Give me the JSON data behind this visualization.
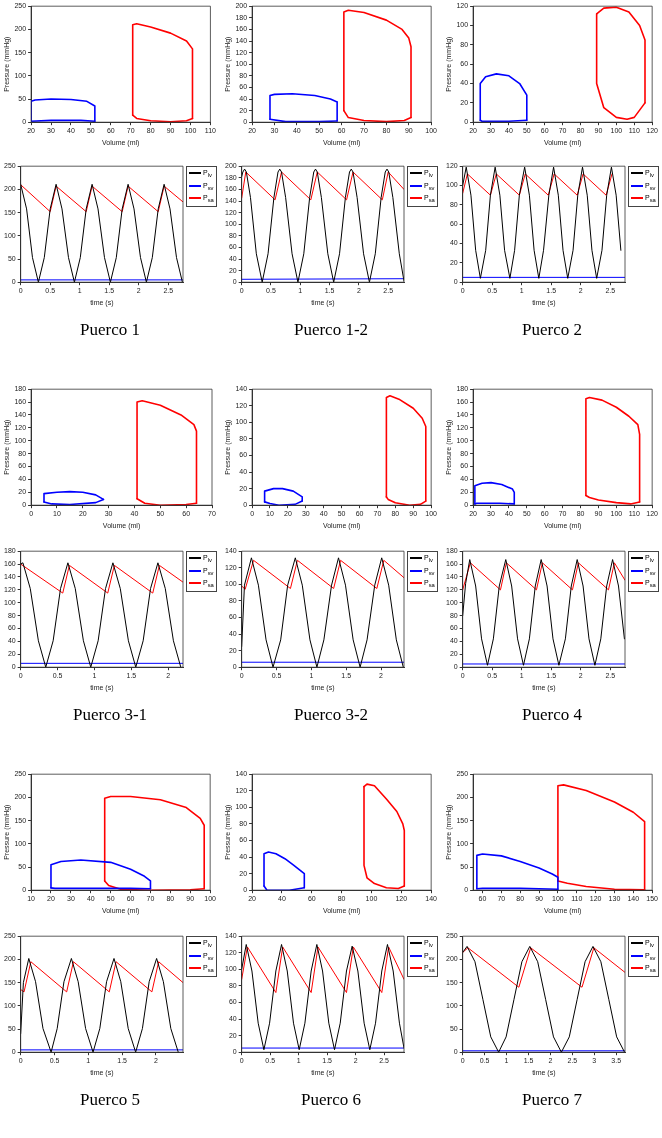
{
  "chart_data": [
    {
      "type": "line",
      "xlabel": "Volume (ml)",
      "ylabel": "Pressure (mmHg)",
      "xlim": [
        20,
        110
      ],
      "xticks": [
        20,
        30,
        40,
        50,
        60,
        70,
        80,
        90,
        100,
        110
      ],
      "ylim": [
        0,
        250
      ],
      "yticks": [
        0,
        50,
        100,
        150,
        200,
        250
      ],
      "series": [
        {
          "color": "#0000ff",
          "x": [
            20,
            20,
            22,
            30,
            40,
            48,
            52,
            52
          ],
          "values": [
            2,
            45,
            48,
            50,
            49,
            45,
            35,
            2
          ]
        },
        {
          "color": "#0000ff",
          "x": [
            20,
            30,
            45,
            52
          ],
          "values": [
            2,
            4,
            4,
            2
          ]
        },
        {
          "color": "#ff0000",
          "x": [
            71,
            71,
            73,
            80,
            90,
            98,
            101,
            101
          ],
          "values": [
            15,
            210,
            212,
            205,
            192,
            175,
            158,
            8
          ]
        },
        {
          "color": "#ff0000",
          "x": [
            71,
            73,
            80,
            90,
            98,
            101
          ],
          "values": [
            15,
            8,
            3,
            1,
            3,
            8
          ]
        }
      ]
    },
    {
      "type": "line",
      "xlabel": "Volume (ml)",
      "ylabel": "Pressure (mmHg)",
      "xlim": [
        20,
        100
      ],
      "xticks": [
        20,
        30,
        40,
        50,
        60,
        70,
        80,
        90,
        100
      ],
      "ylim": [
        0,
        200
      ],
      "yticks": [
        0,
        20,
        40,
        60,
        80,
        100,
        120,
        140,
        160,
        180,
        200
      ],
      "series": [
        {
          "color": "#0000ff",
          "x": [
            28,
            28,
            30,
            38,
            48,
            55,
            58,
            58
          ],
          "values": [
            5,
            46,
            48,
            49,
            46,
            40,
            35,
            2
          ]
        },
        {
          "color": "#0000ff",
          "x": [
            28,
            35,
            50,
            58
          ],
          "values": [
            5,
            1,
            1,
            2
          ]
        },
        {
          "color": "#ff0000",
          "x": [
            61,
            61,
            63,
            70,
            80,
            87,
            90,
            91,
            91
          ],
          "values": [
            20,
            190,
            193,
            189,
            176,
            160,
            145,
            130,
            8
          ]
        },
        {
          "color": "#ff0000",
          "x": [
            61,
            63,
            70,
            80,
            88,
            91
          ],
          "values": [
            20,
            8,
            3,
            1,
            3,
            8
          ]
        }
      ]
    },
    {
      "type": "line",
      "xlabel": "Volume (ml)",
      "ylabel": "Pressure (mmHg)",
      "xlim": [
        20,
        120
      ],
      "xticks": [
        20,
        30,
        40,
        50,
        60,
        70,
        80,
        90,
        100,
        110,
        120
      ],
      "ylim": [
        0,
        120
      ],
      "yticks": [
        0,
        20,
        40,
        60,
        80,
        100,
        120
      ],
      "series": [
        {
          "color": "#0000ff",
          "x": [
            24,
            24,
            27,
            33,
            40,
            46,
            50,
            50
          ],
          "values": [
            2,
            40,
            47,
            50,
            48,
            40,
            28,
            2
          ]
        },
        {
          "color": "#0000ff",
          "x": [
            24,
            25,
            40,
            50
          ],
          "values": [
            2,
            1,
            1,
            2
          ]
        },
        {
          "color": "#ff0000",
          "x": [
            89,
            93,
            100,
            107,
            113,
            116,
            116
          ],
          "values": [
            112,
            118,
            119,
            114,
            100,
            85,
            20
          ]
        },
        {
          "color": "#ff0000",
          "x": [
            89,
            89,
            93,
            100,
            106,
            110,
            116
          ],
          "values": [
            112,
            40,
            15,
            5,
            3,
            5,
            20
          ]
        }
      ]
    },
    {
      "type": "line",
      "xlabel": "time (s)",
      "xlim": [
        0,
        2.75
      ],
      "xticks": [
        0,
        0.5,
        1,
        1.5,
        2,
        2.5
      ],
      "ylim": [
        0,
        250
      ],
      "yticks": [
        0,
        50,
        100,
        150,
        200,
        250
      ],
      "legend": "top right",
      "annotations": [
        "Puerco 1"
      ],
      "series": [
        {
          "name": "P$_{lv}$",
          "color": "#000000",
          "x": [
            0,
            0.1,
            0.2,
            0.3,
            0.4,
            0.5,
            0.6,
            0.7,
            0.81,
            0.91,
            1.01,
            1.11,
            1.21,
            1.31,
            1.42,
            1.52,
            1.62,
            1.72,
            1.82,
            1.92,
            2.03,
            2.13,
            2.23,
            2.33,
            2.43,
            2.53,
            2.64,
            2.74
          ],
          "values": [
            211,
            158,
            53,
            0,
            53,
            158,
            211,
            158,
            53,
            0,
            53,
            158,
            211,
            158,
            53,
            0,
            53,
            158,
            211,
            158,
            53,
            0,
            53,
            158,
            211,
            158,
            53,
            0
          ]
        },
        {
          "name": "P$_{sv}$",
          "color": "#0000ff",
          "x": [
            0,
            2.75
          ],
          "values": [
            5,
            5
          ]
        },
        {
          "name": "P$_{sa}$",
          "color": "#ff0000",
          "x": [
            0,
            0.5,
            0.6,
            1.11,
            1.21,
            1.72,
            1.82,
            2.33,
            2.43,
            2.75
          ],
          "values": [
            210,
            152,
            207,
            152,
            207,
            152,
            207,
            152,
            207,
            173
          ]
        }
      ]
    },
    {
      "type": "line",
      "xlabel": "time (s)",
      "xlim": [
        0,
        2.77
      ],
      "xticks": [
        0,
        0.5,
        1,
        1.5,
        2,
        2.5
      ],
      "ylim": [
        0,
        200
      ],
      "yticks": [
        0,
        20,
        40,
        60,
        80,
        100,
        120,
        140,
        160,
        180,
        200
      ],
      "legend": "top right",
      "annotations": [
        "Puerco 1-2"
      ],
      "series": [
        {
          "name": "P$_{lv}$",
          "color": "#000000",
          "x": [
            0,
            0.02,
            0.05,
            0.08,
            0.15,
            0.25,
            0.35,
            0.45,
            0.55,
            0.62,
            0.65,
            0.68,
            0.75,
            0.86,
            0.96,
            1.06,
            1.16,
            1.23,
            1.26,
            1.29,
            1.36,
            1.47,
            1.57,
            1.67,
            1.77,
            1.84,
            1.87,
            1.9,
            1.97,
            2.08,
            2.18,
            2.28,
            2.38,
            2.45,
            2.48,
            2.51,
            2.58,
            2.69,
            2.77
          ],
          "values": [
            182,
            190,
            195,
            190,
            146,
            49,
            0,
            49,
            146,
            190,
            195,
            190,
            146,
            49,
            0,
            49,
            146,
            190,
            195,
            190,
            146,
            49,
            0,
            49,
            146,
            190,
            195,
            190,
            146,
            49,
            0,
            49,
            146,
            190,
            195,
            190,
            146,
            49,
            2
          ]
        },
        {
          "name": "P$_{sv}$",
          "color": "#0000ff",
          "x": [
            0,
            2.77
          ],
          "values": [
            5,
            6
          ]
        },
        {
          "name": "P$_{sa}$",
          "color": "#ff0000",
          "x": [
            0,
            0.07,
            0.57,
            0.68,
            1.18,
            1.29,
            1.79,
            1.9,
            2.4,
            2.5,
            2.77
          ],
          "values": [
            145,
            190,
            142,
            190,
            142,
            190,
            142,
            190,
            142,
            190,
            160
          ]
        }
      ]
    },
    {
      "type": "line",
      "xlabel": "time (s)",
      "xlim": [
        0,
        2.75
      ],
      "xticks": [
        0,
        0.5,
        1,
        1.5,
        2,
        2.5
      ],
      "ylim": [
        0,
        120
      ],
      "yticks": [
        0,
        20,
        40,
        60,
        80,
        100,
        120
      ],
      "legend": "top right",
      "annotations": [
        "Puerco 2"
      ],
      "series": [
        {
          "name": "P$_{lv}$",
          "color": "#000000",
          "x": [
            0,
            0.06,
            0.14,
            0.22,
            0.3,
            0.39,
            0.47,
            0.55,
            0.63,
            0.71,
            0.8,
            0.88,
            0.96,
            1.05,
            1.13,
            1.21,
            1.29,
            1.37,
            1.46,
            1.54,
            1.62,
            1.7,
            1.78,
            1.87,
            1.95,
            2.03,
            2.11,
            2.19,
            2.27,
            2.36,
            2.44,
            2.52,
            2.6,
            2.68
          ],
          "values": [
            100,
            119,
            90,
            33,
            4,
            33,
            90,
            119,
            90,
            33,
            4,
            33,
            90,
            119,
            90,
            33,
            4,
            33,
            90,
            119,
            90,
            33,
            4,
            33,
            90,
            119,
            90,
            33,
            4,
            33,
            90,
            119,
            90,
            33
          ]
        },
        {
          "name": "P$_{sv}$",
          "color": "#0000ff",
          "x": [
            0,
            2.75
          ],
          "values": [
            5,
            5
          ]
        },
        {
          "name": "P$_{sa}$",
          "color": "#ff0000",
          "x": [
            0,
            0.08,
            0.47,
            0.57,
            0.96,
            1.06,
            1.45,
            1.55,
            1.94,
            2.04,
            2.43,
            2.53
          ],
          "values": [
            92,
            112,
            90,
            112,
            90,
            112,
            90,
            112,
            90,
            112,
            90,
            112
          ]
        }
      ]
    },
    {
      "type": "line",
      "xlabel": "Volume (ml)",
      "ylabel": "Pressure (mmHg)",
      "xlim": [
        0,
        70
      ],
      "xticks": [
        0,
        10,
        20,
        30,
        40,
        50,
        60,
        70
      ],
      "ylim": [
        0,
        180
      ],
      "yticks": [
        0,
        20,
        40,
        60,
        80,
        100,
        120,
        140,
        160,
        180
      ],
      "series": [
        {
          "color": "#0000ff",
          "x": [
            5,
            5,
            10,
            15,
            20,
            25,
            28
          ],
          "values": [
            5,
            18,
            20,
            21,
            20,
            16,
            9
          ]
        },
        {
          "color": "#0000ff",
          "x": [
            5,
            8,
            15,
            25,
            28
          ],
          "values": [
            5,
            2,
            1,
            4,
            9
          ]
        },
        {
          "color": "#ff0000",
          "x": [
            41,
            41,
            43,
            50,
            58,
            63,
            64,
            64
          ],
          "values": [
            10,
            160,
            162,
            155,
            140,
            125,
            115,
            3
          ]
        },
        {
          "color": "#ff0000",
          "x": [
            41,
            44,
            50,
            60,
            64
          ],
          "values": [
            10,
            3,
            0,
            1,
            3
          ]
        }
      ]
    },
    {
      "type": "line",
      "xlabel": "Volume (ml)",
      "ylabel": "Pressure (mmHg)",
      "xlim": [
        0,
        100
      ],
      "xticks": [
        0,
        10,
        20,
        30,
        40,
        50,
        60,
        70,
        80,
        90,
        100
      ],
      "ylim": [
        0,
        140
      ],
      "yticks": [
        0,
        20,
        40,
        60,
        80,
        100,
        120,
        140
      ],
      "series": [
        {
          "color": "#0000ff",
          "x": [
            7,
            7,
            12,
            17,
            23,
            28,
            28
          ],
          "values": [
            4,
            17,
            20,
            20,
            17,
            10,
            5
          ]
        },
        {
          "color": "#0000ff",
          "x": [
            7,
            10,
            15,
            24,
            28
          ],
          "values": [
            4,
            2,
            0,
            1,
            5
          ]
        },
        {
          "color": "#ff0000",
          "x": [
            75,
            75,
            77,
            82,
            90,
            95,
            97,
            97
          ],
          "values": [
            10,
            130,
            132,
            128,
            117,
            105,
            95,
            5
          ]
        },
        {
          "color": "#ff0000",
          "x": [
            75,
            76,
            80,
            88,
            94,
            97
          ],
          "values": [
            10,
            7,
            3,
            0,
            1,
            5
          ]
        }
      ]
    },
    {
      "type": "line",
      "xlabel": "Volume (ml)",
      "ylabel": "Pressure (mmHg)",
      "xlim": [
        20,
        120
      ],
      "xticks": [
        20,
        30,
        40,
        50,
        60,
        70,
        80,
        90,
        100,
        110,
        120
      ],
      "ylim": [
        0,
        180
      ],
      "yticks": [
        0,
        20,
        40,
        60,
        80,
        100,
        120,
        140,
        160,
        180
      ],
      "series": [
        {
          "color": "#0000ff",
          "x": [
            21,
            21,
            25,
            30,
            36,
            42,
            43,
            43
          ],
          "values": [
            2,
            30,
            34,
            35,
            32,
            25,
            20,
            2
          ]
        },
        {
          "color": "#0000ff",
          "x": [
            21,
            22,
            35,
            43
          ],
          "values": [
            2,
            3,
            3,
            2
          ]
        },
        {
          "color": "#ff0000",
          "x": [
            83,
            83,
            85,
            92,
            100,
            107,
            112,
            113,
            113
          ],
          "values": [
            15,
            165,
            167,
            163,
            152,
            138,
            125,
            110,
            5
          ]
        },
        {
          "color": "#ff0000",
          "x": [
            83,
            85,
            90,
            100,
            108,
            113
          ],
          "values": [
            15,
            12,
            8,
            4,
            2,
            5
          ]
        }
      ]
    },
    {
      "type": "line",
      "xlabel": "time (s)",
      "xlim": [
        0,
        2.2
      ],
      "xticks": [
        0,
        0.5,
        1,
        1.5,
        2
      ],
      "ylim": [
        0,
        180
      ],
      "yticks": [
        0,
        20,
        40,
        60,
        80,
        100,
        120,
        140,
        160,
        180
      ],
      "legend": "top right",
      "annotations": [
        "Puerco 3-1"
      ],
      "series": [
        {
          "name": "P$_{lv}$",
          "color": "#000000",
          "x": [
            0,
            0.03,
            0.13,
            0.24,
            0.34,
            0.44,
            0.54,
            0.64,
            0.74,
            0.85,
            0.95,
            1.05,
            1.15,
            1.25,
            1.35,
            1.46,
            1.56,
            1.66,
            1.76,
            1.86,
            1.96,
            2.07,
            2.17
          ],
          "values": [
            160,
            162,
            122,
            41,
            0,
            41,
            122,
            162,
            122,
            41,
            0,
            41,
            122,
            162,
            122,
            41,
            0,
            41,
            122,
            162,
            122,
            41,
            0
          ]
        },
        {
          "name": "P$_{sv}$",
          "color": "#0000ff",
          "x": [
            0,
            2.2
          ],
          "values": [
            6,
            6
          ]
        },
        {
          "name": "P$_{sa}$",
          "color": "#ff0000",
          "x": [
            0,
            0.57,
            0.66,
            1.18,
            1.27,
            1.79,
            1.88,
            2.2
          ],
          "values": [
            160,
            115,
            158,
            115,
            158,
            115,
            158,
            132
          ]
        }
      ]
    },
    {
      "type": "line",
      "xlabel": "time (s)",
      "xlim": [
        0,
        2.33
      ],
      "xticks": [
        0,
        0.5,
        1,
        1.5,
        2
      ],
      "ylim": [
        0,
        140
      ],
      "yticks": [
        0,
        20,
        40,
        60,
        80,
        100,
        120,
        140
      ],
      "legend": "top right",
      "annotations": [
        "Puerco 3-2"
      ],
      "series": [
        {
          "name": "P$_{lv}$",
          "color": "#000000",
          "x": [
            0,
            0.04,
            0.14,
            0.24,
            0.35,
            0.45,
            0.56,
            0.66,
            0.77,
            0.87,
            0.98,
            1.08,
            1.18,
            1.29,
            1.39,
            1.49,
            1.6,
            1.7,
            1.8,
            1.91,
            2.01,
            2.11,
            2.22,
            2.32
          ],
          "values": [
            25,
            99,
            132,
            99,
            33,
            0,
            33,
            99,
            132,
            99,
            33,
            0,
            33,
            99,
            132,
            99,
            33,
            0,
            33,
            99,
            132,
            99,
            33,
            0
          ]
        },
        {
          "name": "P$_{sv}$",
          "color": "#0000ff",
          "x": [
            0,
            2.33
          ],
          "values": [
            6,
            6
          ]
        },
        {
          "name": "P$_{sa}$",
          "color": "#ff0000",
          "x": [
            0,
            0.05,
            0.17,
            0.7,
            0.8,
            1.32,
            1.42,
            1.94,
            2.04,
            2.33
          ],
          "values": [
            98,
            94,
            129,
            95,
            129,
            95,
            129,
            95,
            129,
            108
          ]
        }
      ]
    },
    {
      "type": "line",
      "xlabel": "time (s)",
      "xlim": [
        0,
        2.75
      ],
      "xticks": [
        0,
        0.5,
        1,
        1.5,
        2,
        2.5
      ],
      "ylim": [
        0,
        180
      ],
      "yticks": [
        0,
        20,
        40,
        60,
        80,
        100,
        120,
        140,
        160,
        180
      ],
      "legend": "top right",
      "annotations": [
        "Puerco 4"
      ],
      "series": [
        {
          "name": "P$_{lv}$",
          "color": "#000000",
          "x": [
            0,
            0.05,
            0.12,
            0.22,
            0.32,
            0.42,
            0.52,
            0.62,
            0.73,
            0.83,
            0.93,
            1.03,
            1.13,
            1.23,
            1.33,
            1.43,
            1.53,
            1.63,
            1.74,
            1.84,
            1.94,
            2.04,
            2.14,
            2.24,
            2.34,
            2.44,
            2.54,
            2.64,
            2.74
          ],
          "values": [
            80,
            130,
            167,
            126,
            44,
            3,
            44,
            126,
            167,
            126,
            44,
            3,
            44,
            126,
            167,
            126,
            44,
            3,
            44,
            126,
            167,
            126,
            44,
            3,
            44,
            126,
            167,
            126,
            44
          ]
        },
        {
          "name": "P$_{sv}$",
          "color": "#0000ff",
          "x": [
            0,
            2.75
          ],
          "values": [
            5,
            5
          ]
        },
        {
          "name": "P$_{sa}$",
          "color": "#ff0000",
          "x": [
            0,
            0.13,
            0.64,
            0.74,
            1.25,
            1.35,
            1.86,
            1.96,
            2.47,
            2.57,
            2.75
          ],
          "values": [
            120,
            162,
            120,
            162,
            120,
            162,
            120,
            162,
            120,
            162,
            135
          ]
        }
      ]
    },
    {
      "type": "line",
      "xlabel": "Volume (ml)",
      "ylabel": "Pressure (mmHg)",
      "xlim": [
        10,
        100
      ],
      "xticks": [
        10,
        20,
        30,
        40,
        50,
        60,
        70,
        80,
        90,
        100
      ],
      "ylim": [
        0,
        250
      ],
      "yticks": [
        0,
        50,
        100,
        150,
        200,
        250
      ],
      "series": [
        {
          "color": "#0000ff",
          "x": [
            20,
            20,
            25,
            35,
            50,
            60,
            67,
            70,
            70
          ],
          "values": [
            5,
            55,
            62,
            65,
            60,
            45,
            30,
            20,
            3
          ]
        },
        {
          "color": "#0000ff",
          "x": [
            20,
            22,
            40,
            60,
            70
          ],
          "values": [
            5,
            4,
            4,
            4,
            3
          ]
        },
        {
          "color": "#ff0000",
          "x": [
            47,
            47,
            50,
            60,
            75,
            88,
            95,
            97,
            97
          ],
          "values": [
            20,
            198,
            202,
            202,
            195,
            178,
            155,
            140,
            3
          ]
        },
        {
          "color": "#ff0000",
          "x": [
            47,
            49,
            55,
            70,
            90,
            97
          ],
          "values": [
            20,
            10,
            2,
            0,
            1,
            3
          ]
        }
      ]
    },
    {
      "type": "line",
      "xlabel": "Volume (ml)",
      "ylabel": "Pressure (mmHg)",
      "xlim": [
        20,
        140
      ],
      "xticks": [
        20,
        40,
        60,
        80,
        100,
        120,
        140
      ],
      "ylim": [
        0,
        140
      ],
      "yticks": [
        0,
        20,
        40,
        60,
        80,
        100,
        120,
        140
      ],
      "series": [
        {
          "color": "#0000ff",
          "x": [
            28,
            28,
            31,
            36,
            42,
            48,
            55,
            55
          ],
          "values": [
            5,
            44,
            46,
            44,
            38,
            30,
            20,
            3
          ]
        },
        {
          "color": "#0000ff",
          "x": [
            28,
            30,
            45,
            55
          ],
          "values": [
            5,
            0,
            0,
            3
          ]
        },
        {
          "color": "#ff0000",
          "x": [
            95,
            97,
            102,
            110,
            117,
            121,
            122,
            122
          ],
          "values": [
            125,
            128,
            126,
            110,
            95,
            80,
            72,
            5
          ]
        },
        {
          "color": "#ff0000",
          "x": [
            95,
            95,
            97,
            102,
            110,
            118,
            122
          ],
          "values": [
            125,
            30,
            15,
            8,
            3,
            2,
            5
          ]
        }
      ]
    },
    {
      "type": "line",
      "xlabel": "Volume (ml)",
      "ylabel": "Pressure (mmHg)",
      "xlim": [
        55,
        150
      ],
      "xticks": [
        60,
        70,
        80,
        90,
        100,
        110,
        120,
        130,
        140,
        150
      ],
      "ylim": [
        0,
        250
      ],
      "yticks": [
        0,
        50,
        100,
        150,
        200,
        250
      ],
      "series": [
        {
          "color": "#0000ff",
          "x": [
            57,
            57,
            60,
            70,
            80,
            90,
            97,
            100,
            100
          ],
          "values": [
            3,
            75,
            78,
            74,
            62,
            48,
            35,
            28,
            2
          ]
        },
        {
          "color": "#0000ff",
          "x": [
            57,
            60,
            80,
            100
          ],
          "values": [
            3,
            4,
            4,
            2
          ]
        },
        {
          "color": "#ff0000",
          "x": [
            100,
            100,
            103,
            115,
            130,
            140,
            146,
            146
          ],
          "values": [
            20,
            225,
            227,
            215,
            190,
            168,
            148,
            1
          ]
        },
        {
          "color": "#ff0000",
          "x": [
            100,
            105,
            115,
            130,
            146
          ],
          "values": [
            20,
            15,
            8,
            2,
            1
          ]
        }
      ]
    },
    {
      "type": "line",
      "xlabel": "time (s)",
      "xlim": [
        0,
        2.4
      ],
      "xticks": [
        0,
        0.5,
        1,
        1.5,
        2
      ],
      "ylim": [
        0,
        250
      ],
      "yticks": [
        0,
        50,
        100,
        150,
        200,
        250
      ],
      "legend": "top right",
      "annotations": [
        "Puerco 5"
      ],
      "series": [
        {
          "name": "P$_{lv}$",
          "color": "#000000",
          "x": [
            0,
            0.04,
            0.12,
            0.22,
            0.33,
            0.45,
            0.54,
            0.64,
            0.75,
            0.85,
            0.96,
            1.07,
            1.17,
            1.27,
            1.38,
            1.48,
            1.59,
            1.7,
            1.8,
            1.9,
            2.01,
            2.11,
            2.22,
            2.33
          ],
          "values": [
            40,
            150,
            202,
            152,
            51,
            0,
            51,
            152,
            202,
            152,
            51,
            0,
            51,
            152,
            202,
            152,
            51,
            0,
            51,
            152,
            202,
            152,
            51,
            0
          ]
        },
        {
          "name": "P$_{sv}$",
          "color": "#0000ff",
          "x": [
            0,
            2.4
          ],
          "values": [
            5,
            5
          ]
        },
        {
          "name": "P$_{sa}$",
          "color": "#ff0000",
          "x": [
            0,
            0.05,
            0.15,
            0.68,
            0.78,
            1.31,
            1.41,
            1.94,
            2.04,
            2.4
          ],
          "values": [
            135,
            130,
            195,
            130,
            195,
            130,
            195,
            130,
            195,
            150
          ]
        }
      ]
    },
    {
      "type": "line",
      "xlabel": "time (s)",
      "xlim": [
        0,
        2.85
      ],
      "xticks": [
        0,
        0.5,
        1,
        1.5,
        2,
        2.5
      ],
      "ylim": [
        0,
        140
      ],
      "yticks": [
        0,
        20,
        40,
        60,
        80,
        100,
        120,
        140
      ],
      "legend": "top right",
      "annotations": [
        "Puerco 6"
      ],
      "series": [
        {
          "name": "P$_{lv}$",
          "color": "#000000",
          "x": [
            0,
            0.08,
            0.18,
            0.29,
            0.39,
            0.49,
            0.6,
            0.7,
            0.8,
            0.91,
            1.01,
            1.11,
            1.22,
            1.32,
            1.42,
            1.53,
            1.63,
            1.73,
            1.84,
            1.94,
            2.04,
            2.15,
            2.25,
            2.35,
            2.46,
            2.56,
            2.66,
            2.77,
            2.85
          ],
          "values": [
            100,
            130,
            98,
            35,
            3,
            35,
            98,
            130,
            98,
            35,
            3,
            35,
            98,
            130,
            98,
            35,
            3,
            35,
            98,
            128,
            98,
            35,
            3,
            35,
            98,
            130,
            98,
            35,
            5
          ]
        },
        {
          "name": "P$_{sv}$",
          "color": "#0000ff",
          "x": [
            0,
            2.85
          ],
          "values": [
            5,
            5
          ]
        },
        {
          "name": "P$_{sa}$",
          "color": "#ff0000",
          "x": [
            0,
            0.1,
            0.6,
            0.72,
            1.22,
            1.34,
            1.84,
            1.96,
            2.46,
            2.58,
            2.85
          ],
          "values": [
            88,
            127,
            72,
            127,
            72,
            127,
            72,
            127,
            72,
            127,
            88
          ]
        }
      ]
    },
    {
      "type": "line",
      "xlabel": "time (s)",
      "xlim": [
        0,
        3.7
      ],
      "xticks": [
        0,
        0.5,
        1,
        1.5,
        2,
        2.5,
        3,
        3.5
      ],
      "ylim": [
        0,
        250
      ],
      "yticks": [
        0,
        50,
        100,
        150,
        200,
        250
      ],
      "legend": "top right",
      "annotations": [
        "Puerco 7"
      ],
      "series": [
        {
          "name": "P$_{lv}$",
          "color": "#000000",
          "x": [
            0,
            0.1,
            0.28,
            0.46,
            0.64,
            0.82,
            0.99,
            1.17,
            1.35,
            1.53,
            1.71,
            1.89,
            2.07,
            2.25,
            2.43,
            2.61,
            2.79,
            2.97,
            3.15,
            3.33,
            3.51,
            3.69
          ],
          "values": [
            215,
            228,
            195,
            114,
            33,
            0,
            33,
            114,
            195,
            228,
            195,
            114,
            33,
            0,
            33,
            114,
            195,
            228,
            195,
            114,
            33,
            0
          ]
        },
        {
          "name": "P$_{sv}$",
          "color": "#0000ff",
          "x": [
            0,
            3.7
          ],
          "values": [
            3,
            3
          ]
        },
        {
          "name": "P$_{sa}$",
          "color": "#ff0000",
          "x": [
            0,
            0.12,
            1.28,
            1.55,
            2.72,
            2.99,
            3.7
          ],
          "values": [
            215,
            225,
            140,
            225,
            140,
            225,
            172
          ]
        }
      ]
    }
  ]
}
